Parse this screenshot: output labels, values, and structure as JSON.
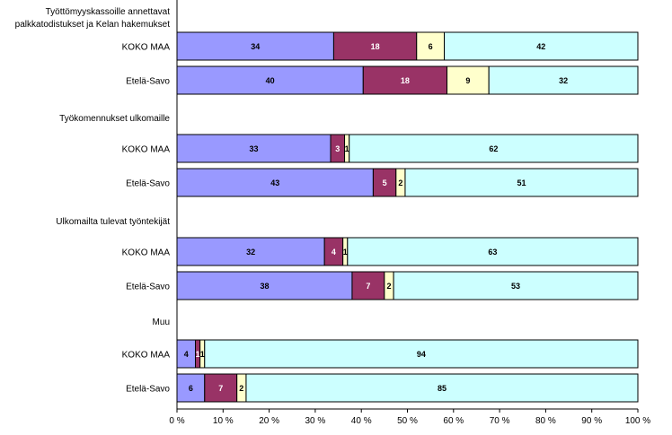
{
  "chart_data": {
    "type": "bar",
    "orientation": "horizontal",
    "stacked": true,
    "percent_stacked": true,
    "title": "",
    "xlabel": "",
    "ylabel": "",
    "xlim": [
      0,
      100
    ],
    "grid": false,
    "legend": "none",
    "x_ticks": [
      "0 %",
      "10 %",
      "20 %",
      "30 %",
      "40 %",
      "50 %",
      "60 %",
      "70 %",
      "80 %",
      "90 %",
      "100 %"
    ],
    "groups": [
      {
        "label_lines": [
          "Työttömyyskassoille annettavat",
          "palkkatodistukset ja Kelan hakemukset"
        ],
        "rows": [
          {
            "label": "KOKO MAA",
            "values": [
              34,
              18,
              6,
              42
            ],
            "labels": [
              "34",
              "18",
              "6",
              "42"
            ]
          },
          {
            "label": "Etelä-Savo",
            "values": [
              40,
              18,
              9,
              32
            ],
            "labels": [
              "40",
              "18",
              "9",
              "32"
            ]
          }
        ]
      },
      {
        "label_lines": [
          "Työkomennukset ulkomaille"
        ],
        "rows": [
          {
            "label": "KOKO MAA",
            "values": [
              33,
              3,
              1,
              62
            ],
            "labels": [
              "33",
              "3",
              "1",
              "62"
            ]
          },
          {
            "label": "Etelä-Savo",
            "values": [
              43,
              5,
              2,
              51
            ],
            "labels": [
              "43",
              "5",
              "2",
              "51"
            ]
          }
        ]
      },
      {
        "label_lines": [
          "Ulkomailta tulevat työntekijät"
        ],
        "rows": [
          {
            "label": "KOKO MAA",
            "values": [
              32,
              4,
              1,
              63
            ],
            "labels": [
              "32",
              "4",
              "1",
              "63"
            ]
          },
          {
            "label": "Etelä-Savo",
            "values": [
              38,
              7,
              2,
              53
            ],
            "labels": [
              "38",
              "7",
              "2",
              "53"
            ]
          }
        ]
      },
      {
        "label_lines": [
          "Muu"
        ],
        "rows": [
          {
            "label": "KOKO MAA",
            "values": [
              4,
              1,
              1,
              94
            ],
            "labels": [
              "4",
              "1",
              "1",
              "94"
            ]
          },
          {
            "label": "Etelä-Savo",
            "values": [
              6,
              7,
              2,
              85
            ],
            "labels": [
              "6",
              "7",
              "2",
              "85"
            ]
          }
        ]
      }
    ],
    "series_colors": [
      "#9999ff",
      "#993366",
      "#ffffcc",
      "#ccffff"
    ],
    "series_label_colors": [
      "#000000",
      "#ffffff",
      "#000000",
      "#000000"
    ]
  }
}
